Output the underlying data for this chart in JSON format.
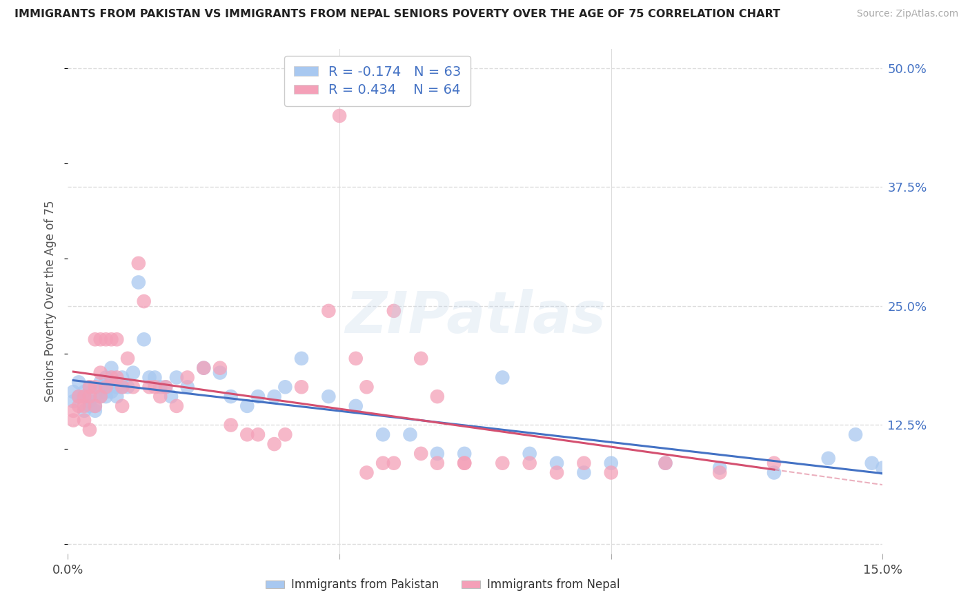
{
  "title": "IMMIGRANTS FROM PAKISTAN VS IMMIGRANTS FROM NEPAL SENIORS POVERTY OVER THE AGE OF 75 CORRELATION CHART",
  "source": "Source: ZipAtlas.com",
  "ylabel": "Seniors Poverty Over the Age of 75",
  "R_pakistan": -0.174,
  "N_pakistan": 63,
  "R_nepal": 0.434,
  "N_nepal": 64,
  "color_pakistan": "#a8c8f0",
  "color_nepal": "#f4a0b8",
  "trendline_color_pakistan": "#4472c4",
  "trendline_color_nepal": "#d45070",
  "xlim": [
    0.0,
    0.15
  ],
  "ylim": [
    -0.01,
    0.52
  ],
  "yticks": [
    0.0,
    0.125,
    0.25,
    0.375,
    0.5
  ],
  "ytick_labels": [
    "",
    "12.5%",
    "25.0%",
    "37.5%",
    "50.0%"
  ],
  "background_color": "#ffffff",
  "grid_color": "#dddddd",
  "watermark_text": "ZIPatlas",
  "pakistan_x": [
    0.001,
    0.001,
    0.002,
    0.002,
    0.003,
    0.003,
    0.003,
    0.004,
    0.004,
    0.004,
    0.005,
    0.005,
    0.005,
    0.006,
    0.006,
    0.006,
    0.007,
    0.007,
    0.007,
    0.008,
    0.008,
    0.008,
    0.009,
    0.009,
    0.01,
    0.01,
    0.011,
    0.012,
    0.013,
    0.014,
    0.015,
    0.016,
    0.017,
    0.018,
    0.019,
    0.02,
    0.022,
    0.025,
    0.028,
    0.03,
    0.033,
    0.035,
    0.038,
    0.04,
    0.043,
    0.048,
    0.053,
    0.058,
    0.063,
    0.068,
    0.073,
    0.08,
    0.085,
    0.09,
    0.095,
    0.1,
    0.11,
    0.12,
    0.13,
    0.14,
    0.145,
    0.148,
    0.15
  ],
  "pakistan_y": [
    0.15,
    0.16,
    0.155,
    0.17,
    0.14,
    0.155,
    0.16,
    0.145,
    0.15,
    0.165,
    0.14,
    0.155,
    0.145,
    0.155,
    0.165,
    0.17,
    0.155,
    0.16,
    0.175,
    0.16,
    0.17,
    0.185,
    0.155,
    0.165,
    0.165,
    0.175,
    0.165,
    0.18,
    0.275,
    0.215,
    0.175,
    0.175,
    0.165,
    0.165,
    0.155,
    0.175,
    0.165,
    0.185,
    0.18,
    0.155,
    0.145,
    0.155,
    0.155,
    0.165,
    0.195,
    0.155,
    0.145,
    0.115,
    0.115,
    0.095,
    0.095,
    0.175,
    0.095,
    0.085,
    0.075,
    0.085,
    0.085,
    0.08,
    0.075,
    0.09,
    0.115,
    0.085,
    0.08
  ],
  "nepal_x": [
    0.001,
    0.001,
    0.002,
    0.002,
    0.003,
    0.003,
    0.003,
    0.004,
    0.004,
    0.004,
    0.005,
    0.005,
    0.005,
    0.006,
    0.006,
    0.006,
    0.007,
    0.007,
    0.008,
    0.008,
    0.009,
    0.009,
    0.01,
    0.01,
    0.011,
    0.012,
    0.013,
    0.014,
    0.015,
    0.016,
    0.017,
    0.018,
    0.02,
    0.022,
    0.025,
    0.028,
    0.03,
    0.033,
    0.035,
    0.038,
    0.04,
    0.043,
    0.048,
    0.053,
    0.055,
    0.058,
    0.06,
    0.065,
    0.068,
    0.073,
    0.05,
    0.055,
    0.06,
    0.065,
    0.068,
    0.073,
    0.08,
    0.085,
    0.09,
    0.095,
    0.1,
    0.11,
    0.12,
    0.13
  ],
  "nepal_y": [
    0.13,
    0.14,
    0.145,
    0.155,
    0.13,
    0.145,
    0.155,
    0.12,
    0.165,
    0.155,
    0.145,
    0.165,
    0.215,
    0.155,
    0.18,
    0.215,
    0.165,
    0.215,
    0.175,
    0.215,
    0.175,
    0.215,
    0.145,
    0.165,
    0.195,
    0.165,
    0.295,
    0.255,
    0.165,
    0.165,
    0.155,
    0.165,
    0.145,
    0.175,
    0.185,
    0.185,
    0.125,
    0.115,
    0.115,
    0.105,
    0.115,
    0.165,
    0.245,
    0.195,
    0.165,
    0.085,
    0.085,
    0.095,
    0.085,
    0.085,
    0.45,
    0.075,
    0.245,
    0.195,
    0.155,
    0.085,
    0.085,
    0.085,
    0.075,
    0.085,
    0.075,
    0.085,
    0.075,
    0.085
  ]
}
